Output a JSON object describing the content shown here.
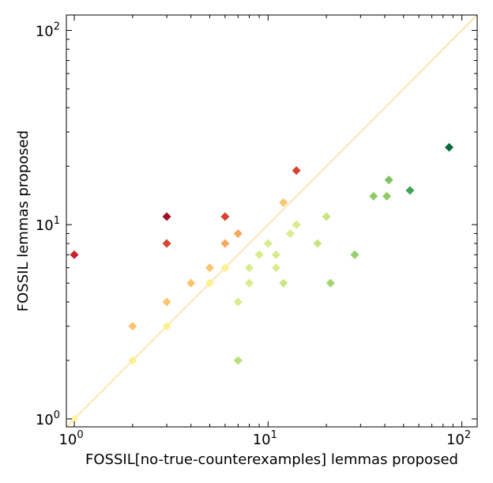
{
  "chart_data": {
    "type": "scatter",
    "xlabel": "FOSSIL[no-true-counterexamples] lemmas proposed",
    "ylabel": "FOSSIL lemmas proposed",
    "xscale": "log",
    "yscale": "log",
    "xlim": [
      0.91,
      120
    ],
    "ylim": [
      0.91,
      120
    ],
    "grid": false,
    "legend": "none",
    "marker": "diamond",
    "diagonal": {
      "from": [
        0.91,
        0.91
      ],
      "to": [
        120,
        120
      ],
      "color": "#fde5b3"
    },
    "x_ticks": [
      {
        "value": 1,
        "base": "10",
        "exp": "0"
      },
      {
        "value": 10,
        "base": "10",
        "exp": "1"
      },
      {
        "value": 100,
        "base": "10",
        "exp": "2"
      }
    ],
    "y_ticks": [
      {
        "value": 1,
        "base": "10",
        "exp": "0"
      },
      {
        "value": 10,
        "base": "10",
        "exp": "1"
      },
      {
        "value": 100,
        "base": "10",
        "exp": "2"
      }
    ],
    "points": [
      {
        "x": 1,
        "y": 1,
        "color": "#fef5a0"
      },
      {
        "x": 1,
        "y": 7,
        "color": "#c9202b"
      },
      {
        "x": 2,
        "y": 2,
        "color": "#fef08a"
      },
      {
        "x": 2,
        "y": 3,
        "color": "#fcc46e"
      },
      {
        "x": 3,
        "y": 3,
        "color": "#fef08a"
      },
      {
        "x": 3,
        "y": 4,
        "color": "#fcc46e"
      },
      {
        "x": 3,
        "y": 8,
        "color": "#d8432f"
      },
      {
        "x": 3,
        "y": 11,
        "color": "#a50d26"
      },
      {
        "x": 4,
        "y": 5,
        "color": "#fcc46e"
      },
      {
        "x": 5,
        "y": 5,
        "color": "#fef08a"
      },
      {
        "x": 5,
        "y": 6,
        "color": "#fcc46e"
      },
      {
        "x": 6,
        "y": 6,
        "color": "#fef08a"
      },
      {
        "x": 6,
        "y": 8,
        "color": "#fba55f"
      },
      {
        "x": 6,
        "y": 11,
        "color": "#d8432f"
      },
      {
        "x": 7,
        "y": 9,
        "color": "#fba55f"
      },
      {
        "x": 7,
        "y": 4,
        "color": "#d7ec8a"
      },
      {
        "x": 7,
        "y": 2,
        "color": "#b6e07a"
      },
      {
        "x": 8,
        "y": 5,
        "color": "#d7ec8a"
      },
      {
        "x": 8,
        "y": 6,
        "color": "#d7ec8a"
      },
      {
        "x": 9,
        "y": 7,
        "color": "#d7ec8a"
      },
      {
        "x": 10,
        "y": 8,
        "color": "#d7ec8a"
      },
      {
        "x": 11,
        "y": 6,
        "color": "#d7ec8a"
      },
      {
        "x": 11,
        "y": 7,
        "color": "#d7ec8a"
      },
      {
        "x": 12,
        "y": 5,
        "color": "#c8e680"
      },
      {
        "x": 12,
        "y": 13,
        "color": "#fcc46e"
      },
      {
        "x": 13,
        "y": 9,
        "color": "#d7ec8a"
      },
      {
        "x": 14,
        "y": 10,
        "color": "#d7ec8a"
      },
      {
        "x": 14,
        "y": 19,
        "color": "#d8432f"
      },
      {
        "x": 18,
        "y": 8,
        "color": "#c8e680"
      },
      {
        "x": 20,
        "y": 11,
        "color": "#c8e680"
      },
      {
        "x": 21,
        "y": 5,
        "color": "#a3d56c"
      },
      {
        "x": 28,
        "y": 7,
        "color": "#96d06a"
      },
      {
        "x": 35,
        "y": 14,
        "color": "#8ccb65"
      },
      {
        "x": 41,
        "y": 14,
        "color": "#8ccb65"
      },
      {
        "x": 42,
        "y": 17,
        "color": "#7cc462"
      },
      {
        "x": 54,
        "y": 15,
        "color": "#3fa356"
      },
      {
        "x": 86,
        "y": 25,
        "color": "#0a6b3a"
      }
    ]
  }
}
